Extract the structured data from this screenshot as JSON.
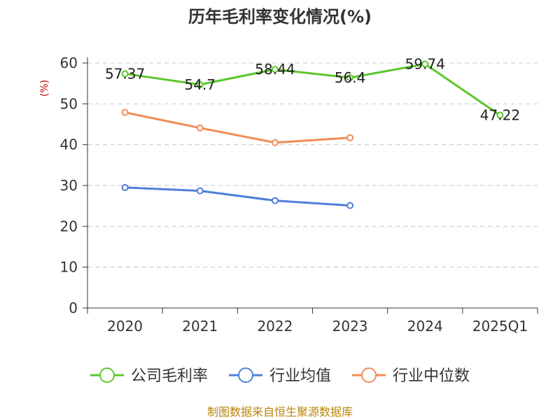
{
  "chart_data": {
    "type": "line",
    "title": "历年毛利率变化情况(%)",
    "ylabel": "(%)",
    "xlabel": "",
    "categories": [
      "2020",
      "2021",
      "2022",
      "2023",
      "2024",
      "2025Q1"
    ],
    "yticks": [
      "0",
      "10",
      "20",
      "30",
      "40",
      "50",
      "60"
    ],
    "ylim": [
      0,
      60
    ],
    "grid": true,
    "legend_position": "bottom",
    "series": [
      {
        "name": "公司毛利率",
        "color": "#5cc72d",
        "values": [
          57.37,
          54.7,
          58.44,
          56.4,
          59.74,
          47.22
        ],
        "labels": [
          "57.37",
          "54.7",
          "58.44",
          "56.4",
          "59.74",
          "47.22"
        ]
      },
      {
        "name": "行业均值",
        "color": "#4e7fd9",
        "values": [
          29.5,
          28.7,
          26.3,
          25.1,
          null,
          null
        ]
      },
      {
        "name": "行业中位数",
        "color": "#f28c55",
        "values": [
          47.9,
          44.1,
          40.5,
          41.7,
          null,
          null
        ]
      }
    ]
  },
  "source_text": "制图数据来自恒生聚源数据库"
}
